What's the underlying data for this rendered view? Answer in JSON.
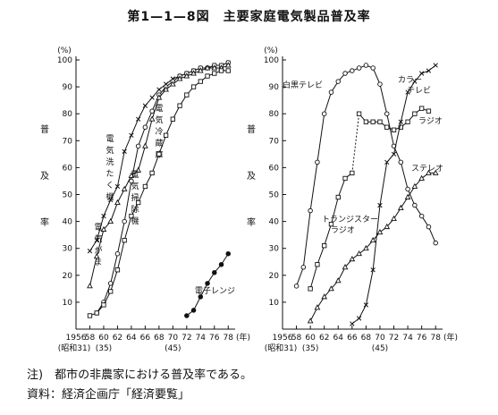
{
  "title": "第1—1—8図　主要家庭電気製品普及率",
  "notes": {
    "note1": "注)　都市の非農家における普及率である。",
    "note2": "資料：経済企画庁「経済要覧」"
  },
  "chart_data": [
    {
      "type": "line",
      "unit_label": "(%)",
      "ylabel": "普及率",
      "xlabel_unit": "(年)",
      "ylim": [
        0,
        100
      ],
      "xlim": [
        56,
        79
      ],
      "x_ticks": [
        "1956",
        "58",
        "60",
        "62",
        "64",
        "66",
        "68",
        "70",
        "72",
        "74",
        "76",
        "78"
      ],
      "x_ticks_sub": [
        "(昭和31)",
        "(35)",
        "(45)"
      ],
      "y_ticks": [
        "10",
        "20",
        "30",
        "40",
        "50",
        "60",
        "70",
        "80",
        "90",
        "100"
      ],
      "series": [
        {
          "name": "電気洗たく機",
          "marker": "x",
          "x": [
            58,
            59,
            60,
            61,
            62,
            63,
            64,
            65,
            66,
            67,
            68,
            69,
            70,
            71,
            72,
            73,
            74,
            75,
            76,
            77,
            78
          ],
          "y": [
            29,
            33,
            42,
            48,
            53,
            66,
            72,
            78,
            83,
            86,
            89,
            91,
            93,
            94,
            95,
            96,
            97,
            97,
            98,
            98,
            99
          ]
        },
        {
          "name": "電気冷蔵庫",
          "marker": "circle",
          "x": [
            59,
            60,
            61,
            62,
            63,
            64,
            65,
            66,
            67,
            68,
            69,
            70,
            71,
            72,
            73,
            74,
            75,
            76,
            77,
            78
          ],
          "y": [
            6,
            10,
            17,
            28,
            40,
            55,
            68,
            75,
            81,
            87,
            90,
            92,
            94,
            95,
            96,
            97,
            97,
            98,
            98,
            99
          ]
        },
        {
          "name": "電気がま",
          "marker": "triangle",
          "x": [
            58,
            59,
            60,
            61,
            62,
            63,
            64,
            65,
            66,
            67,
            68,
            69,
            70,
            71,
            72,
            73,
            74,
            75,
            76,
            77,
            78
          ],
          "y": [
            16,
            27,
            37,
            40,
            47,
            52,
            57,
            59,
            68,
            78,
            86,
            89,
            91,
            93,
            94,
            95,
            96,
            97,
            97,
            97,
            98
          ]
        },
        {
          "name": "電気掃除機",
          "marker": "square",
          "x": [
            58,
            59,
            60,
            61,
            62,
            63,
            64,
            65,
            66,
            67,
            68,
            69,
            70,
            71,
            72,
            73,
            74,
            75,
            76,
            77,
            78
          ],
          "y": [
            5,
            6,
            9,
            14,
            22,
            33,
            42,
            47,
            53,
            58,
            65,
            72,
            78,
            83,
            87,
            90,
            92,
            94,
            95,
            96,
            96
          ]
        },
        {
          "name": "電子レンジ",
          "marker": "filled-circle",
          "x": [
            72,
            73,
            74,
            75,
            76,
            77,
            78
          ],
          "y": [
            5,
            7,
            12,
            17,
            21,
            24,
            28
          ]
        }
      ]
    },
    {
      "type": "line",
      "unit_label": "(%)",
      "ylabel": "普及率",
      "xlabel_unit": "(年)",
      "ylim": [
        0,
        100
      ],
      "xlim": [
        56,
        79
      ],
      "x_ticks": [
        "1956",
        "58",
        "60",
        "62",
        "64",
        "66",
        "68",
        "70",
        "72",
        "74",
        "76",
        "78"
      ],
      "x_ticks_sub": [
        "(昭和31)",
        "(35)",
        "(45)"
      ],
      "y_ticks": [
        "10",
        "20",
        "30",
        "40",
        "50",
        "60",
        "70",
        "80",
        "90",
        "100"
      ],
      "series": [
        {
          "name": "白黒テレビ",
          "marker": "circle",
          "x": [
            58,
            59,
            60,
            61,
            62,
            63,
            64,
            65,
            66,
            67,
            68,
            69,
            70,
            71,
            72,
            73,
            74,
            75,
            76,
            77,
            78
          ],
          "y": [
            16,
            23,
            44,
            62,
            80,
            88,
            92,
            95,
            96,
            97,
            98,
            97,
            91,
            80,
            68,
            62,
            52,
            46,
            42,
            38,
            32
          ]
        },
        {
          "name": "トランジスターラジオ",
          "marker": "square",
          "x": [
            60,
            61,
            62,
            63,
            64,
            65,
            66,
            67,
            68,
            69,
            70,
            71,
            72,
            73,
            74,
            75,
            76,
            77
          ],
          "y": [
            15,
            24,
            31,
            39,
            49,
            56,
            58,
            80,
            77,
            77,
            77,
            75,
            74,
            75,
            77,
            80,
            82,
            81
          ]
        },
        {
          "name": "カラーテレビ",
          "marker": "x",
          "x": [
            66,
            67,
            68,
            69,
            70,
            71,
            72,
            73,
            74,
            75,
            76,
            77,
            78
          ],
          "y": [
            2,
            4,
            9,
            22,
            46,
            62,
            65,
            77,
            88,
            92,
            95,
            96,
            98
          ]
        },
        {
          "name": "ステレオ",
          "marker": "triangle",
          "x": [
            60,
            61,
            62,
            63,
            64,
            65,
            66,
            67,
            68,
            69,
            70,
            71,
            72,
            73,
            74,
            75,
            76,
            77,
            78
          ],
          "y": [
            3,
            8,
            12,
            15,
            18,
            23,
            26,
            28,
            30,
            33,
            36,
            38,
            41,
            45,
            49,
            53,
            56,
            58,
            58
          ]
        }
      ]
    }
  ]
}
